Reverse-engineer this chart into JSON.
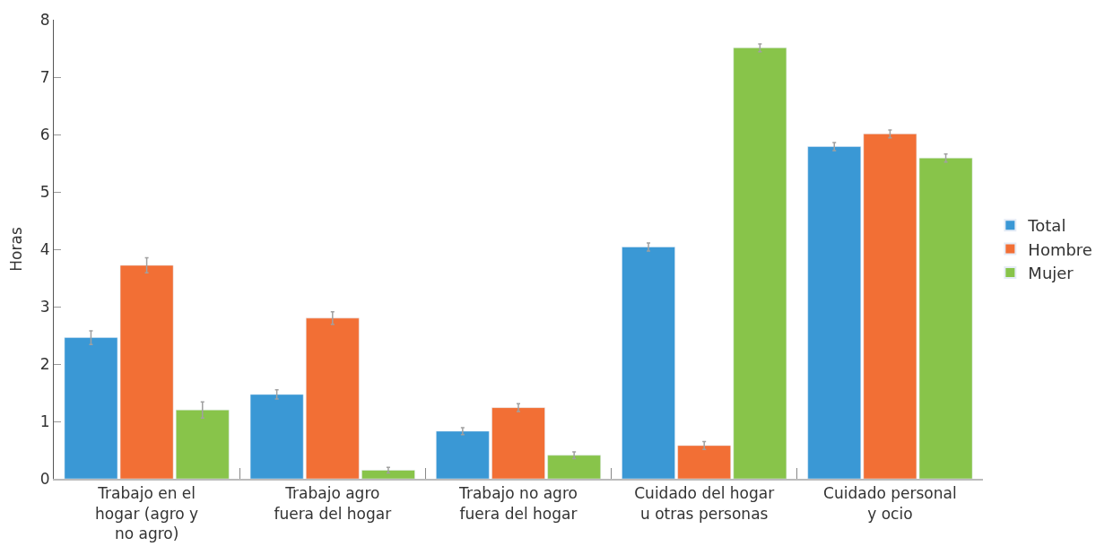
{
  "chart_data": {
    "type": "bar",
    "ylabel": "Horas",
    "categories": [
      "Trabajo en el\nhogar (agro y\nno agro)",
      "Trabajo agro\nfuera del hogar",
      "Trabajo no agro\nfuera del hogar",
      "Cuidado del hogar\nu otras personas",
      "Cuidado personal\ny ocio"
    ],
    "series": [
      {
        "name": "Total",
        "color": "#3a98d5",
        "values": [
          2.46,
          1.47,
          0.83,
          4.04,
          5.79
        ],
        "errors": [
          0.12,
          0.08,
          0.06,
          0.07,
          0.07
        ]
      },
      {
        "name": "Hombre",
        "color": "#f26f35",
        "values": [
          3.72,
          2.8,
          1.24,
          0.58,
          6.01
        ],
        "errors": [
          0.13,
          0.11,
          0.07,
          0.07,
          0.07
        ]
      },
      {
        "name": "Mujer",
        "color": "#88c44a",
        "values": [
          1.2,
          0.15,
          0.41,
          7.51,
          5.59
        ],
        "errors": [
          0.14,
          0.05,
          0.06,
          0.07,
          0.07
        ]
      }
    ],
    "ylim": [
      0,
      8
    ],
    "yticks": [
      0,
      1,
      2,
      3,
      4,
      5,
      6,
      7,
      8
    ],
    "legend": "right"
  }
}
